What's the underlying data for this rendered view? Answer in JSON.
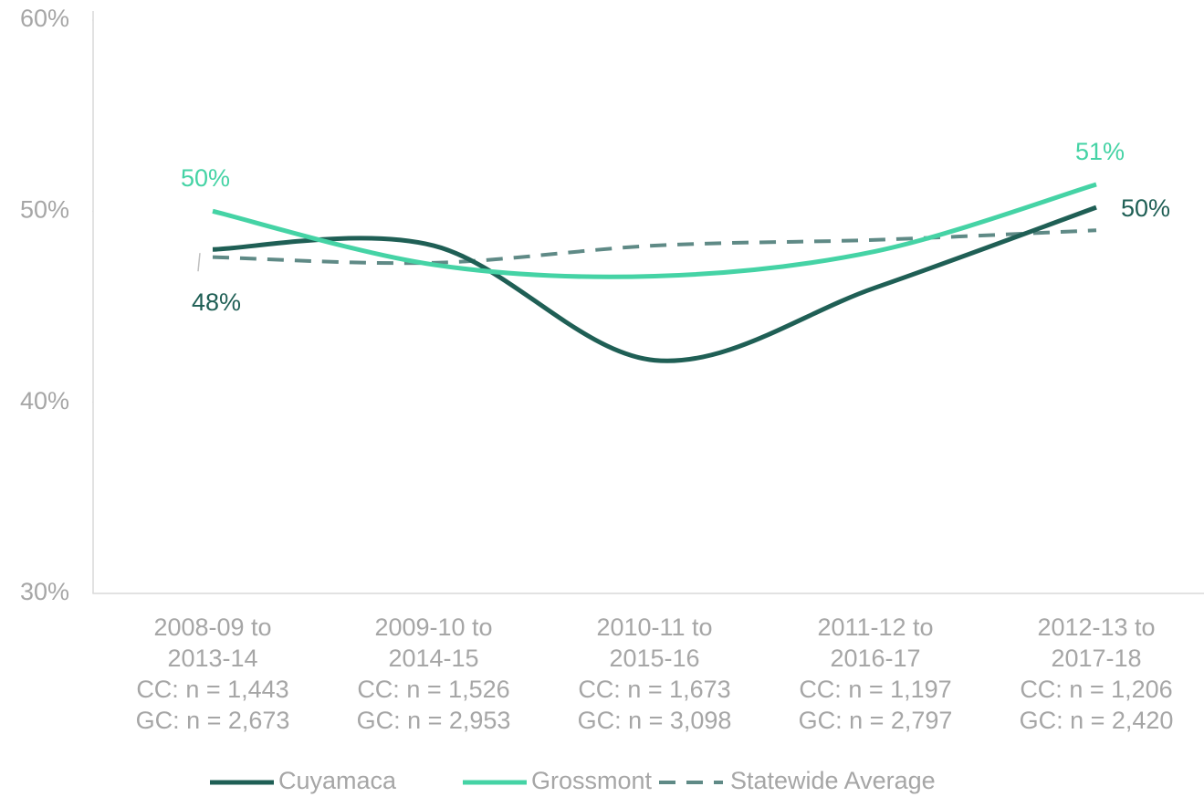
{
  "chart_data": {
    "type": "line",
    "categories": [
      "2008-09 to 2013-14",
      "2009-10 to 2014-15",
      "2010-11 to 2015-16",
      "2011-12 to 2016-17",
      "2012-13 to 2017-18"
    ],
    "category_notes": [
      [
        "CC: n = 1,443",
        "GC: n = 2,673"
      ],
      [
        "CC: n = 1,526",
        "GC: n = 2,953"
      ],
      [
        "CC: n = 1,673",
        "GC: n = 3,098"
      ],
      [
        "CC: n = 1,197",
        "GC: n = 2,797"
      ],
      [
        "CC: n = 1,206",
        "GC: n = 2,420"
      ]
    ],
    "series": [
      {
        "name": "Cuyamaca",
        "color": "#1f5f55",
        "dashed": false,
        "values": [
          48.0,
          48.2,
          42.2,
          46.0,
          50.2
        ],
        "value_labels": [
          "48%",
          null,
          null,
          null,
          "50%"
        ]
      },
      {
        "name": "Grossmont",
        "color": "#45d3a5",
        "dashed": false,
        "values": [
          50.0,
          47.2,
          46.6,
          47.9,
          51.4
        ],
        "value_labels": [
          "50%",
          null,
          null,
          null,
          "51%"
        ]
      },
      {
        "name": "Statewide Average",
        "color": "#5f8a86",
        "dashed": true,
        "values": [
          47.6,
          47.3,
          48.2,
          48.5,
          49.0
        ]
      }
    ],
    "ylim": [
      30,
      60
    ],
    "yticks": [
      {
        "value": 30,
        "label": "30%"
      },
      {
        "value": 40,
        "label": "40%"
      },
      {
        "value": 50,
        "label": "50%"
      },
      {
        "value": 60,
        "label": "60%"
      }
    ],
    "smooth": true,
    "legend": "bottom"
  }
}
